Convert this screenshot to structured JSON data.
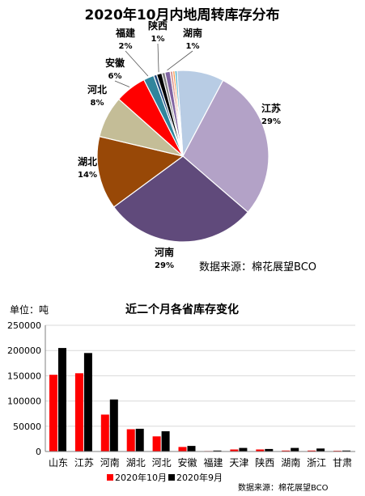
{
  "chart_data": [
    {
      "type": "pie",
      "title": "2020年10月内地周转库存分布",
      "source": "数据来源：棉花展望BCO",
      "slices": [
        {
          "label": "",
          "value": 9,
          "color": "#b8cce4"
        },
        {
          "label": "江苏",
          "value": 29,
          "display": "29%",
          "color": "#b3a2c7"
        },
        {
          "label": "河南",
          "value": 29,
          "display": "29%",
          "color": "#604a7b"
        },
        {
          "label": "湖北",
          "value": 14,
          "display": "14%",
          "color": "#984807"
        },
        {
          "label": "河北",
          "value": 8,
          "display": "8%",
          "color": "#c4bd97"
        },
        {
          "label": "安徽",
          "value": 6,
          "display": "6%",
          "color": "#ff0000"
        },
        {
          "label": "福建",
          "value": 2,
          "display": "2%",
          "color": "#31859c"
        },
        {
          "label": "",
          "value": 0.6,
          "color": "#1f497d"
        },
        {
          "label": "陕西",
          "value": 1,
          "display": "1%",
          "color": "#000000"
        },
        {
          "label": "",
          "value": 0.6,
          "color": "#7f7f7f"
        },
        {
          "label": "湖南",
          "value": 1,
          "display": "1%",
          "color": "#8064a2"
        },
        {
          "label": "",
          "value": 0.5,
          "color": "#d99694"
        },
        {
          "label": "",
          "value": 0.4,
          "color": "#f79646"
        },
        {
          "label": "",
          "value": 0.4,
          "color": "#4bacc6"
        }
      ]
    },
    {
      "type": "bar",
      "title": "近二个月各省库存变化",
      "unit_label": "单位：吨",
      "source": "数据来源：棉花展望BCO",
      "categories": [
        "山东",
        "江苏",
        "河南",
        "湖北",
        "河北",
        "安徽",
        "福建",
        "天津",
        "陕西",
        "湖南",
        "浙江",
        "甘肃"
      ],
      "ylim": [
        0,
        250000
      ],
      "yticks": [
        "0",
        "50000",
        "100000",
        "150000",
        "200000",
        "250000"
      ],
      "series": [
        {
          "name": "2020年10月",
          "color": "#ff0000",
          "values": [
            152000,
            155000,
            73000,
            44000,
            30000,
            9000,
            1000,
            4000,
            4000,
            2000,
            2000,
            1500
          ]
        },
        {
          "name": "2020年9月",
          "color": "#000000",
          "values": [
            205000,
            195000,
            103000,
            45000,
            40000,
            11000,
            2000,
            7000,
            5000,
            7000,
            6000,
            2000
          ]
        }
      ],
      "legend": "bottom"
    }
  ]
}
